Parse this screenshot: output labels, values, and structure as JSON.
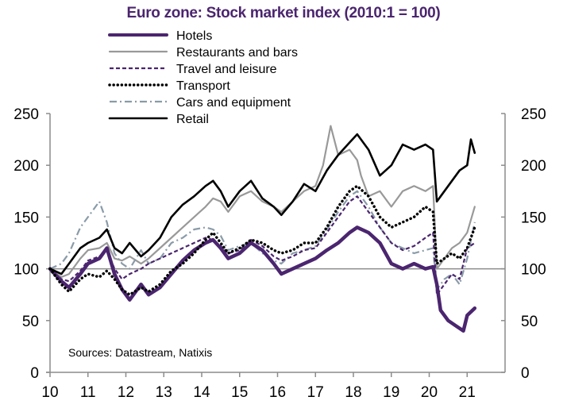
{
  "chart_data": {
    "type": "line",
    "title": "Euro zone: Stock market index (2010:1 = 100)",
    "xlabel": "",
    "ylabel": "",
    "xlim": [
      2010,
      2022
    ],
    "ylim": [
      0,
      250
    ],
    "x_ticks": [
      10,
      11,
      12,
      13,
      14,
      15,
      16,
      17,
      18,
      19,
      20,
      21
    ],
    "y_ticks": [
      0,
      50,
      100,
      150,
      200,
      250
    ],
    "y_axis_right": true,
    "reference_line": 100,
    "grid": false,
    "legend_position": "top-left",
    "annotation": "Sources:  Datastream,  Natixis",
    "series": [
      {
        "name": "Hotels",
        "style": "solid-thick",
        "color": "#4b256f",
        "x": [
          2010.0,
          2010.3,
          2010.5,
          2010.8,
          2011.0,
          2011.3,
          2011.5,
          2011.7,
          2011.9,
          2012.1,
          2012.4,
          2012.6,
          2012.9,
          2013.2,
          2013.5,
          2013.8,
          2014.1,
          2014.3,
          2014.5,
          2014.7,
          2015.0,
          2015.3,
          2015.6,
          2015.9,
          2016.1,
          2016.4,
          2016.7,
          2017.0,
          2017.3,
          2017.6,
          2017.9,
          2018.1,
          2018.4,
          2018.7,
          2019.0,
          2019.3,
          2019.6,
          2019.9,
          2020.1,
          2020.2,
          2020.3,
          2020.5,
          2020.7,
          2020.9,
          2021.0,
          2021.2
        ],
        "values": [
          100,
          88,
          82,
          95,
          105,
          110,
          120,
          95,
          80,
          70,
          85,
          75,
          82,
          95,
          108,
          118,
          125,
          128,
          120,
          110,
          115,
          125,
          118,
          105,
          95,
          100,
          105,
          110,
          118,
          125,
          135,
          140,
          135,
          125,
          105,
          100,
          105,
          100,
          102,
          85,
          60,
          50,
          45,
          40,
          55,
          62
        ]
      },
      {
        "name": "Restaurants and bars",
        "style": "solid-gray",
        "color": "#999999",
        "x": [
          2010.0,
          2010.3,
          2010.5,
          2010.8,
          2011.0,
          2011.3,
          2011.5,
          2011.7,
          2011.9,
          2012.1,
          2012.4,
          2012.6,
          2012.9,
          2013.2,
          2013.5,
          2013.8,
          2014.1,
          2014.3,
          2014.5,
          2014.7,
          2015.0,
          2015.3,
          2015.6,
          2015.9,
          2016.1,
          2016.4,
          2016.7,
          2017.0,
          2017.2,
          2017.4,
          2017.6,
          2017.9,
          2018.1,
          2018.2,
          2018.4,
          2018.7,
          2019.0,
          2019.3,
          2019.6,
          2019.9,
          2020.1,
          2020.2,
          2020.4,
          2020.6,
          2020.8,
          2021.0,
          2021.2
        ],
        "values": [
          100,
          92,
          95,
          110,
          118,
          120,
          125,
          110,
          108,
          112,
          105,
          110,
          120,
          130,
          140,
          150,
          160,
          168,
          165,
          155,
          170,
          175,
          165,
          160,
          155,
          165,
          175,
          180,
          200,
          238,
          210,
          215,
          205,
          190,
          170,
          175,
          160,
          175,
          180,
          175,
          180,
          100,
          110,
          120,
          125,
          135,
          160
        ]
      },
      {
        "name": "Travel and leisure",
        "style": "dashed-purple",
        "color": "#4b256f",
        "x": [
          2010.0,
          2010.3,
          2010.5,
          2010.8,
          2011.0,
          2011.3,
          2011.5,
          2011.7,
          2011.9,
          2012.1,
          2012.4,
          2012.6,
          2012.9,
          2013.2,
          2013.5,
          2013.8,
          2014.1,
          2014.3,
          2014.5,
          2014.7,
          2015.0,
          2015.3,
          2015.6,
          2015.9,
          2016.1,
          2016.4,
          2016.7,
          2017.0,
          2017.3,
          2017.6,
          2017.9,
          2018.1,
          2018.4,
          2018.7,
          2019.0,
          2019.3,
          2019.6,
          2019.9,
          2020.1,
          2020.2,
          2020.4,
          2020.6,
          2020.8,
          2021.0,
          2021.2
        ],
        "values": [
          100,
          90,
          88,
          98,
          108,
          112,
          118,
          100,
          90,
          95,
          100,
          105,
          110,
          115,
          120,
          125,
          130,
          128,
          122,
          115,
          118,
          128,
          122,
          112,
          108,
          112,
          118,
          120,
          135,
          150,
          165,
          170,
          155,
          140,
          125,
          118,
          122,
          130,
          135,
          75,
          85,
          95,
          90,
          120,
          125
        ]
      },
      {
        "name": "Transport",
        "style": "dotted-black",
        "color": "#000000",
        "x": [
          2010.0,
          2010.3,
          2010.5,
          2010.8,
          2011.0,
          2011.3,
          2011.5,
          2011.7,
          2011.9,
          2012.1,
          2012.4,
          2012.6,
          2012.9,
          2013.2,
          2013.5,
          2013.8,
          2014.1,
          2014.3,
          2014.5,
          2014.7,
          2015.0,
          2015.3,
          2015.6,
          2015.9,
          2016.1,
          2016.4,
          2016.7,
          2017.0,
          2017.3,
          2017.6,
          2017.9,
          2018.1,
          2018.4,
          2018.7,
          2019.0,
          2019.3,
          2019.6,
          2019.9,
          2020.1,
          2020.2,
          2020.4,
          2020.6,
          2020.8,
          2021.0,
          2021.2
        ],
        "values": [
          100,
          85,
          78,
          90,
          95,
          92,
          98,
          90,
          80,
          75,
          82,
          78,
          85,
          98,
          105,
          115,
          128,
          135,
          125,
          115,
          120,
          128,
          125,
          118,
          115,
          118,
          125,
          125,
          140,
          160,
          175,
          180,
          170,
          150,
          140,
          145,
          150,
          160,
          155,
          105,
          110,
          115,
          110,
          120,
          140
        ]
      },
      {
        "name": "Cars and equipment",
        "style": "dashdot-bluegray",
        "color": "#8a9ba8",
        "x": [
          2010.0,
          2010.3,
          2010.5,
          2010.8,
          2011.0,
          2011.3,
          2011.5,
          2011.7,
          2011.9,
          2012.1,
          2012.4,
          2012.6,
          2012.9,
          2013.2,
          2013.5,
          2013.8,
          2014.1,
          2014.3,
          2014.5,
          2014.7,
          2015.0,
          2015.3,
          2015.6,
          2015.9,
          2016.1,
          2016.4,
          2016.7,
          2017.0,
          2017.3,
          2017.6,
          2017.9,
          2018.1,
          2018.4,
          2018.7,
          2019.0,
          2019.3,
          2019.6,
          2019.9,
          2020.1,
          2020.2,
          2020.4,
          2020.6,
          2020.8,
          2021.0,
          2021.2
        ],
        "values": [
          100,
          105,
          115,
          140,
          150,
          165,
          145,
          115,
          105,
          100,
          118,
          105,
          110,
          125,
          130,
          138,
          140,
          138,
          132,
          118,
          122,
          125,
          115,
          108,
          105,
          115,
          118,
          122,
          138,
          155,
          170,
          175,
          160,
          140,
          125,
          120,
          115,
          118,
          120,
          80,
          90,
          95,
          85,
          110,
          145
        ]
      },
      {
        "name": "Retail",
        "style": "solid-black",
        "color": "#000000",
        "x": [
          2010.0,
          2010.3,
          2010.5,
          2010.8,
          2011.0,
          2011.3,
          2011.5,
          2011.7,
          2011.9,
          2012.1,
          2012.4,
          2012.6,
          2012.9,
          2013.2,
          2013.5,
          2013.8,
          2014.1,
          2014.3,
          2014.5,
          2014.7,
          2015.0,
          2015.3,
          2015.6,
          2015.9,
          2016.1,
          2016.4,
          2016.7,
          2017.0,
          2017.3,
          2017.6,
          2017.9,
          2018.1,
          2018.4,
          2018.7,
          2019.0,
          2019.3,
          2019.6,
          2019.9,
          2020.1,
          2020.2,
          2020.4,
          2020.6,
          2020.8,
          2021.0,
          2021.1,
          2021.2
        ],
        "values": [
          100,
          95,
          105,
          120,
          125,
          130,
          138,
          120,
          115,
          125,
          112,
          118,
          130,
          150,
          162,
          170,
          180,
          185,
          175,
          160,
          175,
          185,
          168,
          160,
          152,
          165,
          182,
          175,
          195,
          210,
          222,
          230,
          215,
          190,
          200,
          220,
          215,
          220,
          215,
          165,
          175,
          185,
          195,
          200,
          225,
          212
        ]
      }
    ]
  }
}
